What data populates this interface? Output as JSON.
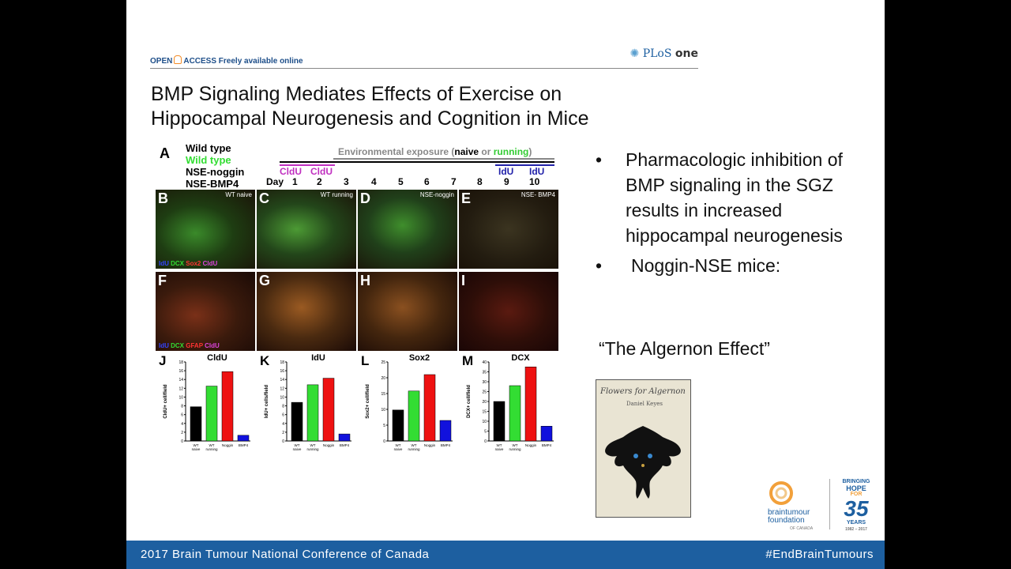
{
  "header": {
    "open_access": "OPEN",
    "open_access_rest": "ACCESS  Freely available online",
    "journal_a": "PLoS ",
    "journal_b": "one"
  },
  "slide": {
    "title_line1": "BMP Signaling Mediates Effects of Exercise on",
    "title_line2": "Hippocampal Neurogenesis and Cognition in Mice",
    "bullets": [
      "Pharmacologic inhibition of BMP signaling in the SGZ results in increased hippocampal neurogenesis",
      "Noggin-NSE mice:"
    ],
    "bullet_glyph": "•",
    "quote": "“The Algernon Effect”"
  },
  "figure": {
    "panel_a": "A",
    "legend": [
      "Wild type",
      "Wild type",
      "NSE-noggin",
      "NSE-BMP4"
    ],
    "env_pre": "Environmental exposure (",
    "env_naive": "naive",
    "env_or": " or ",
    "env_running": "running",
    "env_post": ")",
    "cldu": "CldU",
    "idu": "IdU",
    "day_label": "Day",
    "days": [
      "1",
      "2",
      "3",
      "4",
      "5",
      "6",
      "7",
      "8",
      "9",
      "10"
    ],
    "micro_top": [
      {
        "letter": "B",
        "tag": "WT naive"
      },
      {
        "letter": "C",
        "tag": "WT running"
      },
      {
        "letter": "D",
        "tag": "NSE-noggin"
      },
      {
        "letter": "E",
        "tag": "NSE- BMP4"
      }
    ],
    "micro_bottom": [
      {
        "letter": "F"
      },
      {
        "letter": "G"
      },
      {
        "letter": "H"
      },
      {
        "letter": "I"
      }
    ],
    "stain_top": [
      "IdU",
      "DCX",
      "Sox2",
      "CldU"
    ],
    "stain_bottom": [
      "IdU",
      "DCX",
      "GFAP",
      "CldU"
    ]
  },
  "chart_data": [
    {
      "type": "bar",
      "panel": "J",
      "title": "CldU",
      "ylabel": "CldU+ cell/field",
      "categories": [
        "WT naive",
        "WT running",
        "Noggin",
        "BMP4"
      ],
      "values": [
        7.8,
        12.5,
        15.8,
        1.3
      ],
      "ylim": [
        0,
        18
      ],
      "yticks": [
        0,
        2,
        4,
        6,
        8,
        10,
        12,
        14,
        16,
        18
      ]
    },
    {
      "type": "bar",
      "panel": "K",
      "title": "IdU",
      "ylabel": "IdU+ cells/field",
      "categories": [
        "WT naive",
        "WT running",
        "Noggin",
        "BMP4"
      ],
      "values": [
        8.8,
        12.8,
        14.3,
        1.6
      ],
      "ylim": [
        0,
        18
      ],
      "yticks": [
        0,
        2,
        4,
        6,
        8,
        10,
        12,
        14,
        16,
        18
      ]
    },
    {
      "type": "bar",
      "panel": "L",
      "title": "Sox2",
      "ylabel": "Sox2+ cell/field",
      "categories": [
        "WT naive",
        "WT running",
        "Noggin",
        "BMP4"
      ],
      "values": [
        9.8,
        15.8,
        21,
        6.5
      ],
      "ylim": [
        0,
        25
      ],
      "yticks": [
        0,
        5,
        10,
        15,
        20,
        25
      ]
    },
    {
      "type": "bar",
      "panel": "M",
      "title": "DCX",
      "ylabel": "DCX+ cell/field",
      "categories": [
        "WT naive",
        "WT running",
        "Noggin",
        "BMP4"
      ],
      "values": [
        20,
        28,
        37.5,
        7.5
      ],
      "ylim": [
        0,
        40
      ],
      "yticks": [
        0,
        5,
        10,
        15,
        20,
        25,
        30,
        35,
        40
      ]
    }
  ],
  "bar_colors": [
    "#000000",
    "#33dd33",
    "#ee1111",
    "#1111dd"
  ],
  "book": {
    "title": "Flowers for Algernon",
    "author": "Daniel Keyes"
  },
  "logo": {
    "org_line1": "braintumour",
    "org_line2": "foundation",
    "org_line3": "OF CANADA",
    "hope_line1": "BRINGING",
    "hope_line2": "HOPE",
    "hope_line3": "FOR",
    "hope_big": "35",
    "hope_line4": "YEARS",
    "hope_years": "1982 – 2017"
  },
  "footer": {
    "left": "2017 Brain Tumour National Conference of Canada",
    "right": "#EndBrainTumours"
  }
}
